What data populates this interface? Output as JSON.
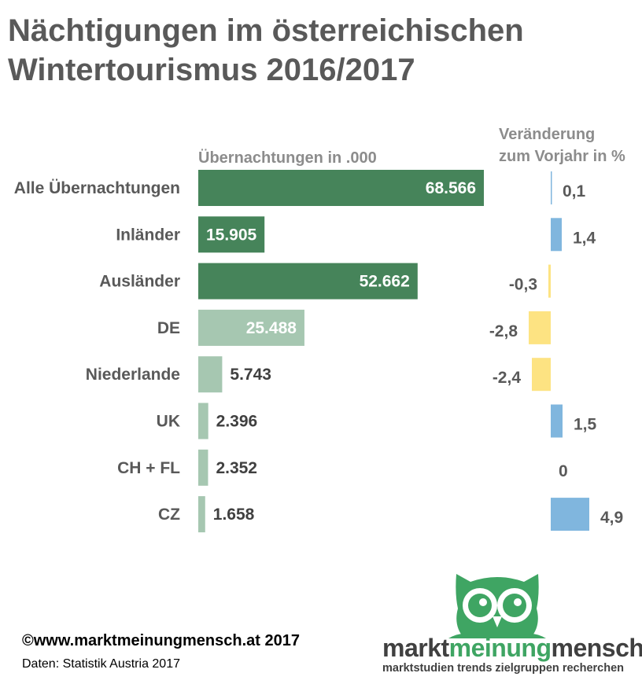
{
  "title_line1": "Nächtigungen im österreichischen",
  "title_line2": "Wintertourismus 2016/2017",
  "header_left": "Übernachtungen in .000",
  "header_right_line1": "Veränderung",
  "header_right_line2": "zum Vorjahr in %",
  "copyright": "©www.marktmeinungmensch.at 2017",
  "source": "Daten: Statistik Austria 2017",
  "brand": {
    "part1": "markt",
    "part2": "meinung",
    "part3": "mensch",
    "tagline": "marktstudien trends zielgruppen recherchen"
  },
  "colors": {
    "total_bar": "#46845a",
    "country_bar": "#a6c7b1",
    "pct_positive": "#80b6de",
    "pct_negative": "#fde382",
    "brand_green": "#3fa563"
  },
  "icons": {
    "logo": "owl-icon"
  },
  "chart_data": {
    "type": "bar",
    "orientation": "horizontal",
    "categories": [
      "Alle Übernachtungen",
      "Inländer",
      "Ausländer",
      "DE",
      "Niederlande",
      "UK",
      "CH + FL",
      "CZ"
    ],
    "value_labels": [
      "68.566",
      "15.905",
      "52.662",
      "25.488",
      "5.743",
      "2.396",
      "2.352",
      "1.658"
    ],
    "pct_labels": [
      "0,1",
      "1,4",
      "-0,3",
      "-2,8",
      "-2,4",
      "1,5",
      "0",
      "4,9"
    ],
    "series": [
      {
        "values": [
          68566,
          15905,
          52662,
          25488,
          5743,
          2396,
          2352,
          1658
        ]
      },
      {
        "values": [
          0.1,
          1.4,
          -0.3,
          -2.8,
          -2.4,
          1.5,
          0,
          4.9
        ]
      }
    ],
    "groups": [
      "total",
      "total",
      "total",
      "country",
      "country",
      "country",
      "country",
      "country"
    ],
    "xlim": [
      0,
      70000
    ],
    "pct_lim": [
      -5,
      5
    ],
    "grid": false,
    "legend": "none"
  }
}
